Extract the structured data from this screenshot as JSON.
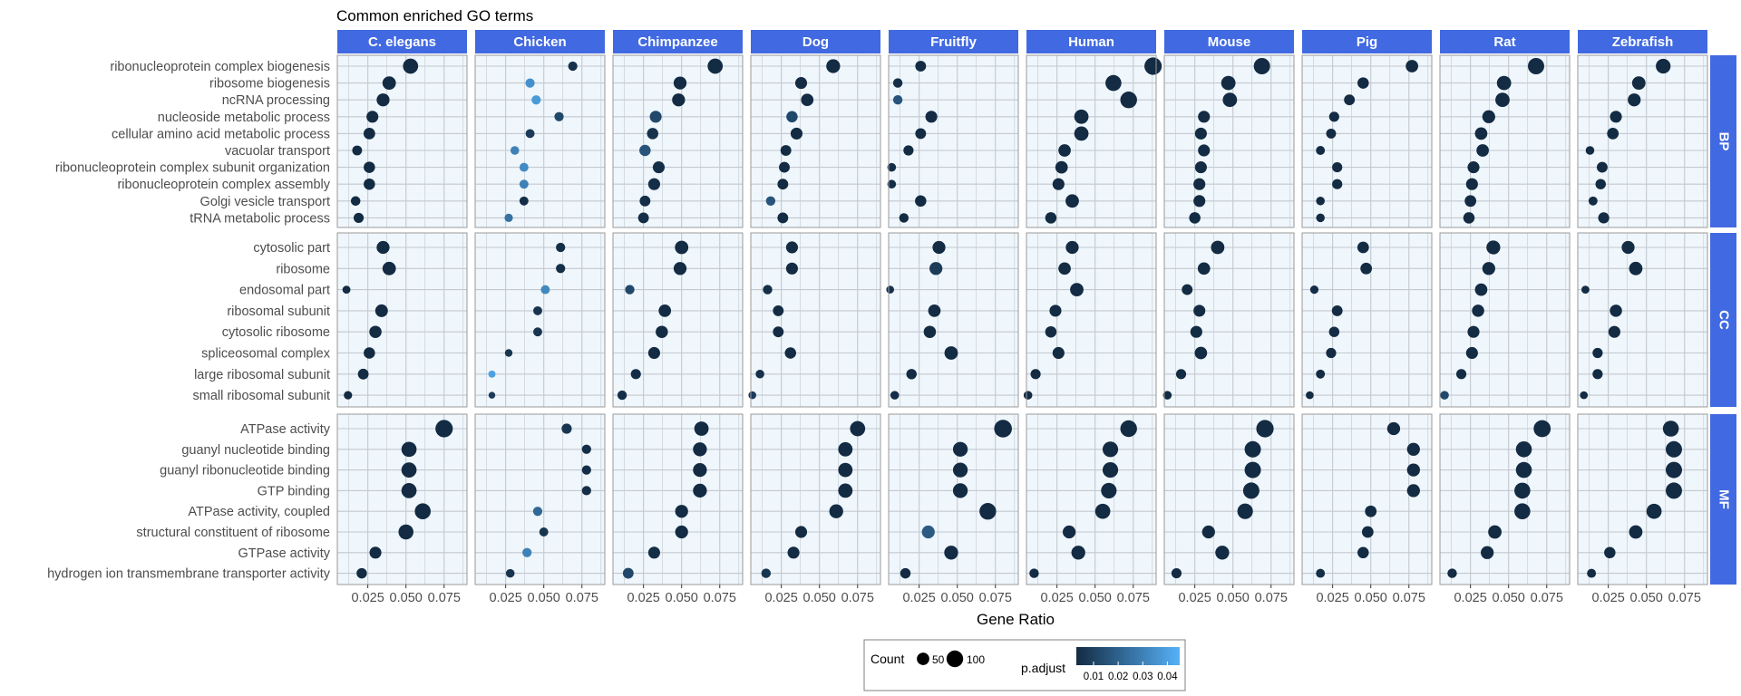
{
  "chart_data": {
    "type": "scatter",
    "title": "Common enriched GO terms",
    "xlabel": "Gene Ratio",
    "ylabel": "",
    "xlim": [
      0.005,
      0.09
    ],
    "x_ticks": [
      0.025,
      0.05,
      0.075
    ],
    "x_tick_labels": [
      "0.025",
      "0.050",
      "0.075"
    ],
    "grid": true,
    "legend_position": "bottom",
    "species": [
      "C. elegans",
      "Chicken",
      "Chimpanzee",
      "Dog",
      "Fruitfly",
      "Human",
      "Mouse",
      "Pig",
      "Rat",
      "Zebrafish"
    ],
    "facets": [
      {
        "name": "BP",
        "terms": [
          "ribonucleoprotein complex biogenesis",
          "ribosome biogenesis",
          "ncRNA processing",
          "nucleoside metabolic process",
          "cellular amino acid metabolic process",
          "vacuolar transport",
          "ribonucleoprotein complex subunit organization",
          "ribonucleoprotein complex assembly",
          "Golgi vesicle transport",
          "tRNA metabolic process"
        ]
      },
      {
        "name": "CC",
        "terms": [
          "cytosolic part",
          "ribosome",
          "endosomal part",
          "ribosomal subunit",
          "cytosolic ribosome",
          "spliceosomal complex",
          "large ribosomal subunit",
          "small ribosomal subunit"
        ]
      },
      {
        "name": "MF",
        "terms": [
          "ATPase activity",
          "guanyl nucleotide binding",
          "guanyl ribonucleotide binding",
          "GTP binding",
          "ATPase activity, coupled",
          "structural constituent of ribosome",
          "GTPase activity",
          "hydrogen ion transmembrane transporter activity"
        ]
      }
    ],
    "gene_ratio": {
      "C. elegans": {
        "BP": [
          0.053,
          0.039,
          0.035,
          0.028,
          0.026,
          0.018,
          0.026,
          0.026,
          0.017,
          0.019
        ],
        "CC": [
          0.035,
          0.039,
          0.011,
          0.034,
          0.03,
          0.026,
          0.022,
          0.012
        ],
        "MF": [
          0.075,
          0.052,
          0.052,
          0.052,
          0.061,
          0.05,
          0.03,
          0.021
        ]
      },
      "Chicken": {
        "BP": [
          0.069,
          0.041,
          0.045,
          0.06,
          0.041,
          0.031,
          0.037,
          0.037,
          0.037,
          0.027
        ],
        "CC": [
          0.061,
          0.061,
          0.051,
          0.046,
          0.046,
          0.027,
          0.016,
          0.016
        ],
        "MF": [
          0.065,
          0.078,
          0.078,
          0.078,
          0.046,
          0.05,
          0.039,
          0.028
        ]
      },
      "Chimpanzee": {
        "BP": [
          0.072,
          0.049,
          0.048,
          0.033,
          0.031,
          0.026,
          0.035,
          0.032,
          0.026,
          0.025
        ],
        "CC": [
          0.05,
          0.049,
          0.016,
          0.039,
          0.037,
          0.032,
          0.02,
          0.011
        ],
        "MF": [
          0.063,
          0.062,
          0.062,
          0.062,
          0.05,
          0.05,
          0.032,
          0.015
        ]
      },
      "Dog": {
        "BP": [
          0.059,
          0.038,
          0.042,
          0.032,
          0.035,
          0.028,
          0.027,
          0.026,
          0.018,
          0.026
        ],
        "CC": [
          0.032,
          0.032,
          0.016,
          0.023,
          0.023,
          0.031,
          0.011,
          0.006
        ],
        "MF": [
          0.075,
          0.067,
          0.067,
          0.067,
          0.061,
          0.038,
          0.033,
          0.015
        ]
      },
      "Fruitfly": {
        "BP": [
          0.026,
          0.011,
          0.011,
          0.033,
          0.026,
          0.018,
          0.007,
          0.007,
          0.026,
          0.015
        ],
        "CC": [
          0.038,
          0.036,
          0.006,
          0.035,
          0.032,
          0.046,
          0.02,
          0.009
        ],
        "MF": [
          0.08,
          0.052,
          0.052,
          0.052,
          0.07,
          0.031,
          0.046,
          0.016
        ]
      },
      "Human": {
        "BP": [
          0.088,
          0.062,
          0.072,
          0.041,
          0.041,
          0.03,
          0.028,
          0.026,
          0.035,
          0.021
        ],
        "CC": [
          0.035,
          0.03,
          0.038,
          0.024,
          0.021,
          0.026,
          0.011,
          0.006
        ],
        "MF": [
          0.072,
          0.06,
          0.06,
          0.059,
          0.055,
          0.033,
          0.039,
          0.01
        ]
      },
      "Mouse": {
        "BP": [
          0.069,
          0.047,
          0.048,
          0.031,
          0.029,
          0.031,
          0.029,
          0.028,
          0.028,
          0.025
        ],
        "CC": [
          0.04,
          0.031,
          0.02,
          0.028,
          0.026,
          0.029,
          0.016,
          0.007
        ],
        "MF": [
          0.071,
          0.063,
          0.063,
          0.062,
          0.058,
          0.034,
          0.043,
          0.013
        ]
      },
      "Pig": {
        "BP": [
          0.077,
          0.045,
          0.036,
          0.026,
          0.024,
          0.017,
          0.028,
          0.028,
          0.017,
          0.017
        ],
        "CC": [
          0.045,
          0.047,
          0.013,
          0.028,
          0.026,
          0.024,
          0.017,
          0.01
        ],
        "MF": [
          0.065,
          0.078,
          0.078,
          0.078,
          0.05,
          0.048,
          0.045,
          0.017
        ]
      },
      "Rat": {
        "BP": [
          0.068,
          0.047,
          0.046,
          0.037,
          0.032,
          0.033,
          0.027,
          0.026,
          0.025,
          0.024
        ],
        "CC": [
          0.04,
          0.037,
          0.032,
          0.03,
          0.027,
          0.026,
          0.019,
          0.008
        ],
        "MF": [
          0.072,
          0.06,
          0.06,
          0.059,
          0.059,
          0.041,
          0.036,
          0.013
        ]
      },
      "Zebrafish": {
        "BP": [
          0.061,
          0.045,
          0.042,
          0.03,
          0.028,
          0.013,
          0.021,
          0.02,
          0.015,
          0.022
        ],
        "CC": [
          0.038,
          0.043,
          0.01,
          0.03,
          0.029,
          0.018,
          0.018,
          0.009
        ],
        "MF": [
          0.066,
          0.068,
          0.068,
          0.068,
          0.055,
          0.043,
          0.026,
          0.014
        ]
      }
    },
    "count": {
      "C. elegans": {
        "BP": [
          80,
          60,
          55,
          45,
          42,
          28,
          40,
          40,
          26,
          30
        ],
        "CC": [
          55,
          60,
          16,
          52,
          48,
          40,
          35,
          18
        ],
        "MF": [
          110,
          80,
          80,
          80,
          90,
          78,
          45,
          32
        ]
      },
      "Chicken": {
        "BP": [
          24,
          24,
          24,
          24,
          22,
          20,
          22,
          22,
          22,
          18
        ],
        "CC": [
          24,
          24,
          22,
          22,
          22,
          14,
          12,
          10
        ],
        "MF": [
          30,
          24,
          24,
          24,
          24,
          22,
          24,
          20
        ]
      },
      "Chimpanzee": {
        "BP": [
          80,
          55,
          55,
          45,
          40,
          40,
          45,
          45,
          35,
          35
        ],
        "CC": [
          60,
          55,
          25,
          50,
          48,
          45,
          30,
          25
        ],
        "MF": [
          70,
          65,
          65,
          65,
          55,
          55,
          45,
          35
        ]
      },
      "Dog": {
        "BP": [
          65,
          45,
          50,
          40,
          45,
          35,
          35,
          35,
          25,
          35
        ],
        "CC": [
          45,
          45,
          25,
          35,
          35,
          40,
          20,
          15
        ],
        "MF": [
          80,
          70,
          70,
          70,
          65,
          45,
          45,
          25
        ]
      },
      "Fruitfly": {
        "BP": [
          35,
          25,
          25,
          45,
          35,
          30,
          20,
          20,
          40,
          25
        ],
        "CC": [
          55,
          55,
          15,
          50,
          48,
          60,
          32,
          20
        ],
        "MF": [
          115,
          75,
          75,
          75,
          100,
          55,
          65,
          32
        ]
      },
      "Human": {
        "BP": [
          110,
          90,
          100,
          70,
          70,
          50,
          50,
          45,
          60,
          40
        ],
        "CC": [
          55,
          50,
          60,
          45,
          40,
          45,
          30,
          20
        ],
        "MF": [
          100,
          85,
          85,
          85,
          80,
          55,
          65,
          25
        ]
      },
      "Mouse": {
        "BP": [
          95,
          70,
          70,
          45,
          45,
          45,
          45,
          45,
          45,
          40
        ],
        "CC": [
          60,
          50,
          35,
          45,
          45,
          50,
          30,
          20
        ],
        "MF": [
          110,
          95,
          95,
          95,
          85,
          55,
          65,
          30
        ]
      },
      "Pig": {
        "BP": [
          50,
          40,
          35,
          30,
          28,
          22,
          30,
          30,
          20,
          20
        ],
        "CC": [
          42,
          42,
          18,
          35,
          32,
          30,
          22,
          15
        ],
        "MF": [
          55,
          55,
          55,
          55,
          42,
          42,
          40,
          22
        ]
      },
      "Rat": {
        "BP": [
          95,
          70,
          70,
          55,
          50,
          50,
          45,
          45,
          42,
          40
        ],
        "CC": [
          65,
          55,
          50,
          48,
          45,
          45,
          30,
          20
        ],
        "MF": [
          105,
          90,
          90,
          90,
          90,
          60,
          55,
          25
        ]
      },
      "Zebrafish": {
        "BP": [
          75,
          60,
          55,
          45,
          42,
          20,
          35,
          32,
          22,
          38
        ],
        "CC": [
          55,
          60,
          16,
          48,
          45,
          30,
          30,
          15
        ],
        "MF": [
          90,
          95,
          95,
          95,
          80,
          60,
          40,
          22
        ]
      }
    },
    "p_adjust": {
      "C. elegans": {
        "BP": [
          0.003,
          0.003,
          0.003,
          0.003,
          0.003,
          0.003,
          0.003,
          0.003,
          0.003,
          0.003
        ],
        "CC": [
          0.003,
          0.003,
          0.003,
          0.003,
          0.003,
          0.003,
          0.003,
          0.003
        ],
        "MF": [
          0.003,
          0.003,
          0.003,
          0.003,
          0.003,
          0.003,
          0.003,
          0.003
        ]
      },
      "Chicken": {
        "BP": [
          0.005,
          0.035,
          0.038,
          0.012,
          0.008,
          0.03,
          0.033,
          0.03,
          0.004,
          0.025
        ],
        "CC": [
          0.004,
          0.004,
          0.032,
          0.006,
          0.006,
          0.006,
          0.04,
          0.008
        ],
        "MF": [
          0.006,
          0.004,
          0.004,
          0.004,
          0.022,
          0.006,
          0.03,
          0.006
        ]
      },
      "Chimpanzee": {
        "BP": [
          0.003,
          0.003,
          0.003,
          0.012,
          0.005,
          0.016,
          0.004,
          0.004,
          0.004,
          0.004
        ],
        "CC": [
          0.003,
          0.003,
          0.012,
          0.003,
          0.003,
          0.003,
          0.004,
          0.004
        ],
        "MF": [
          0.003,
          0.003,
          0.003,
          0.003,
          0.003,
          0.003,
          0.004,
          0.012
        ]
      },
      "Dog": {
        "BP": [
          0.003,
          0.003,
          0.003,
          0.012,
          0.003,
          0.003,
          0.003,
          0.003,
          0.016,
          0.003
        ],
        "CC": [
          0.003,
          0.003,
          0.004,
          0.003,
          0.003,
          0.003,
          0.005,
          0.008
        ],
        "MF": [
          0.003,
          0.003,
          0.003,
          0.003,
          0.003,
          0.003,
          0.003,
          0.006
        ]
      },
      "Fruitfly": {
        "BP": [
          0.003,
          0.004,
          0.016,
          0.003,
          0.003,
          0.003,
          0.004,
          0.004,
          0.003,
          0.003
        ],
        "CC": [
          0.003,
          0.008,
          0.005,
          0.003,
          0.003,
          0.003,
          0.003,
          0.004
        ],
        "MF": [
          0.003,
          0.003,
          0.003,
          0.003,
          0.003,
          0.018,
          0.003,
          0.003
        ]
      },
      "Human": {
        "BP": [
          0.003,
          0.003,
          0.003,
          0.003,
          0.003,
          0.003,
          0.003,
          0.003,
          0.003,
          0.003
        ],
        "CC": [
          0.003,
          0.003,
          0.003,
          0.003,
          0.003,
          0.003,
          0.003,
          0.003
        ],
        "MF": [
          0.003,
          0.003,
          0.003,
          0.003,
          0.003,
          0.003,
          0.003,
          0.003
        ]
      },
      "Mouse": {
        "BP": [
          0.003,
          0.003,
          0.003,
          0.003,
          0.003,
          0.003,
          0.003,
          0.003,
          0.003,
          0.003
        ],
        "CC": [
          0.003,
          0.003,
          0.003,
          0.003,
          0.003,
          0.003,
          0.003,
          0.003
        ],
        "MF": [
          0.003,
          0.003,
          0.003,
          0.003,
          0.003,
          0.003,
          0.003,
          0.003
        ]
      },
      "Pig": {
        "BP": [
          0.003,
          0.003,
          0.003,
          0.003,
          0.003,
          0.003,
          0.003,
          0.003,
          0.003,
          0.003
        ],
        "CC": [
          0.003,
          0.003,
          0.004,
          0.003,
          0.003,
          0.003,
          0.003,
          0.003
        ],
        "MF": [
          0.003,
          0.003,
          0.003,
          0.003,
          0.003,
          0.003,
          0.003,
          0.004
        ]
      },
      "Rat": {
        "BP": [
          0.003,
          0.003,
          0.003,
          0.003,
          0.003,
          0.003,
          0.003,
          0.003,
          0.003,
          0.003
        ],
        "CC": [
          0.003,
          0.003,
          0.003,
          0.003,
          0.003,
          0.003,
          0.003,
          0.012
        ],
        "MF": [
          0.003,
          0.003,
          0.003,
          0.003,
          0.003,
          0.003,
          0.003,
          0.003
        ]
      },
      "Zebrafish": {
        "BP": [
          0.003,
          0.003,
          0.003,
          0.003,
          0.003,
          0.003,
          0.003,
          0.003,
          0.003,
          0.003
        ],
        "CC": [
          0.003,
          0.003,
          0.003,
          0.003,
          0.003,
          0.003,
          0.003,
          0.003
        ],
        "MF": [
          0.003,
          0.003,
          0.003,
          0.003,
          0.003,
          0.003,
          0.003,
          0.003
        ]
      }
    },
    "legend": {
      "count_title": "Count",
      "count_values": [
        50,
        100
      ],
      "count_labels": [
        "50",
        "100"
      ],
      "padjust_title": "p.adjust",
      "padjust_labels": [
        "0.01",
        "0.02",
        "0.03",
        "0.04"
      ],
      "padjust_values": [
        0.01,
        0.02,
        0.03,
        0.04
      ],
      "padjust_range": [
        0.003,
        0.045
      ]
    }
  },
  "colors": {
    "strip": "#4169E1",
    "strip_text": "#ffffff",
    "panel_bg": "#EFF6FC",
    "panel_border": "#9A9A9A",
    "grid": "#C3C9CE",
    "axis_text": "#4D4D4D",
    "point_low": "#132B43",
    "point_high": "#56B1F7"
  }
}
